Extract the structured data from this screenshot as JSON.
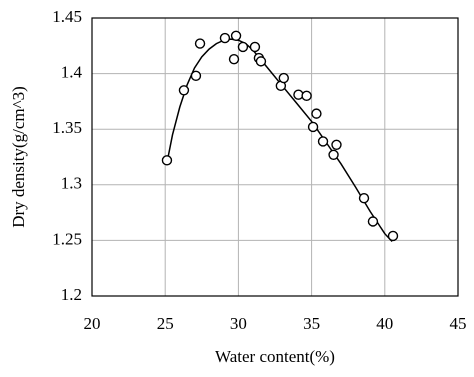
{
  "chart_data": {
    "type": "scatter",
    "xlabel": "Water content(%)",
    "ylabel": "Dry density(g/cm^3)",
    "xlim": [
      20,
      45
    ],
    "xticks": [
      20,
      25,
      30,
      35,
      40,
      45
    ],
    "ylim": [
      1.2,
      1.45
    ],
    "yticks": [
      1.2,
      1.25,
      1.3,
      1.35,
      1.4,
      1.45
    ],
    "grid": true,
    "color": "#000000",
    "x": [
      25.12,
      26.28,
      27.1,
      27.38,
      29.08,
      29.84,
      29.7,
      30.31,
      31.13,
      31.4,
      31.54,
      32.9,
      33.1,
      34.1,
      34.66,
      35.33,
      35.1,
      35.78,
      36.7,
      36.5,
      38.58,
      39.19,
      40.56
    ],
    "values": [
      1.322,
      1.385,
      1.398,
      1.427,
      1.432,
      1.434,
      1.413,
      1.424,
      1.424,
      1.414,
      1.411,
      1.389,
      1.396,
      1.381,
      1.38,
      1.364,
      1.352,
      1.339,
      1.336,
      1.327,
      1.288,
      1.267,
      1.254
    ],
    "fit_x": [
      25.2,
      25.5,
      26,
      26.5,
      27,
      27.5,
      28,
      28.5,
      29,
      29.5,
      30,
      30.5,
      31,
      31.5,
      32,
      33,
      34,
      35,
      36,
      37,
      38,
      39,
      40,
      40.5
    ],
    "fit_values": [
      1.325,
      1.345,
      1.37,
      1.39,
      1.405,
      1.415,
      1.422,
      1.427,
      1.43,
      1.431,
      1.43,
      1.427,
      1.421,
      1.413,
      1.405,
      1.389,
      1.373,
      1.357,
      1.338,
      1.319,
      1.298,
      1.276,
      1.256,
      1.249
    ]
  }
}
